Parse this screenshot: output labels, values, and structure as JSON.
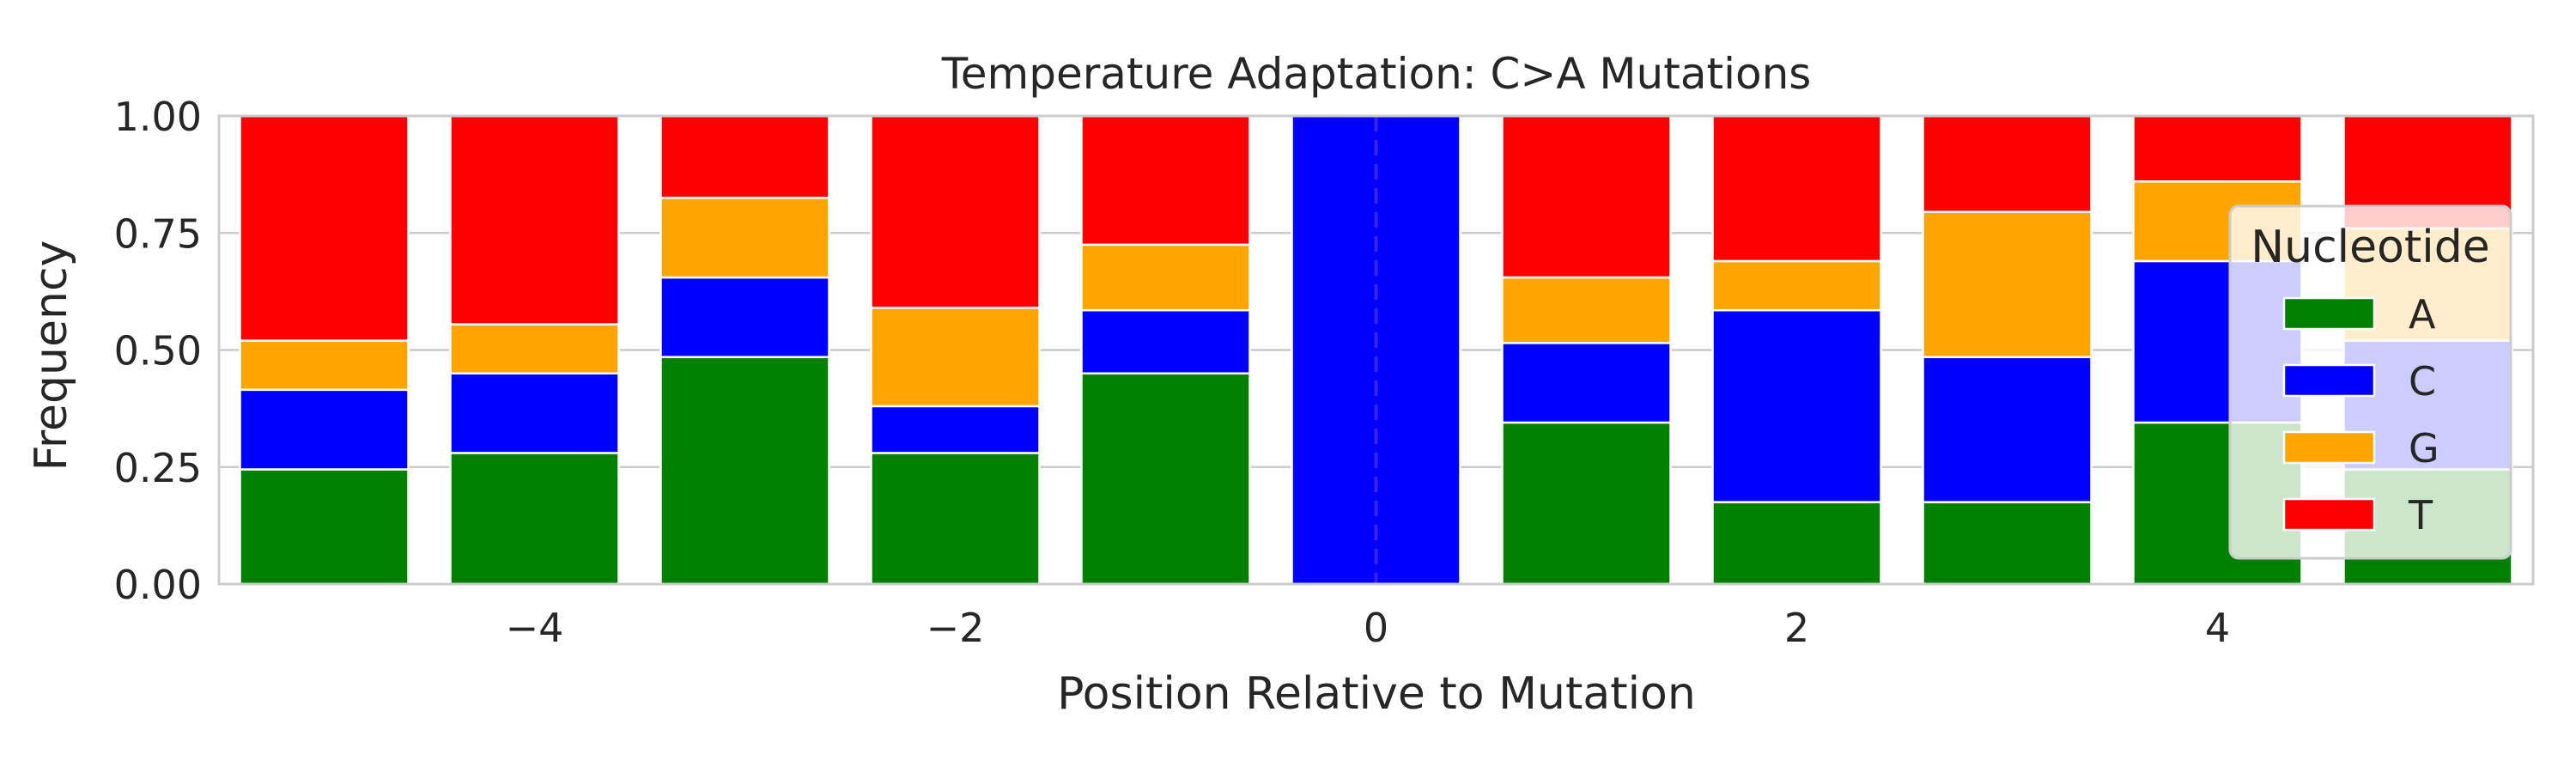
{
  "chart_data": {
    "type": "bar",
    "stacked": true,
    "title": "Temperature Adaptation: C>A Mutations",
    "xlabel": "Position Relative to Mutation",
    "ylabel": "Frequency",
    "x": [
      -5,
      -4,
      -3,
      -2,
      -1,
      0,
      1,
      2,
      3,
      4,
      5
    ],
    "xlim": [
      -5.5,
      5.5
    ],
    "ylim": [
      0,
      1
    ],
    "xticks": [
      -4,
      -2,
      0,
      2,
      4
    ],
    "xtick_labels": [
      "−4",
      "−2",
      "0",
      "2",
      "4"
    ],
    "yticks": [
      0,
      0.25,
      0.5,
      0.75,
      1.0
    ],
    "ytick_labels": [
      "0.00",
      "0.25",
      "0.50",
      "0.75",
      "1.00"
    ],
    "grid": "horizontal",
    "reference_line": {
      "x": 0,
      "style": "dashed"
    },
    "legend": {
      "title": "Nucleotide",
      "placement": "right"
    },
    "series": [
      {
        "name": "A",
        "color": "#008000",
        "values": [
          0.245,
          0.28,
          0.485,
          0.28,
          0.45,
          0.0,
          0.345,
          0.175,
          0.175,
          0.345,
          0.245
        ]
      },
      {
        "name": "C",
        "color": "#0000ff",
        "values": [
          0.17,
          0.17,
          0.17,
          0.1,
          0.135,
          1.0,
          0.17,
          0.41,
          0.31,
          0.345,
          0.275
        ]
      },
      {
        "name": "G",
        "color": "#ffa500",
        "values": [
          0.105,
          0.105,
          0.17,
          0.21,
          0.14,
          0.0,
          0.14,
          0.105,
          0.31,
          0.17,
          0.24
        ]
      },
      {
        "name": "T",
        "color": "#ff0000",
        "values": [
          0.48,
          0.445,
          0.175,
          0.41,
          0.275,
          0.0,
          0.345,
          0.31,
          0.205,
          0.14,
          0.24
        ]
      }
    ]
  }
}
